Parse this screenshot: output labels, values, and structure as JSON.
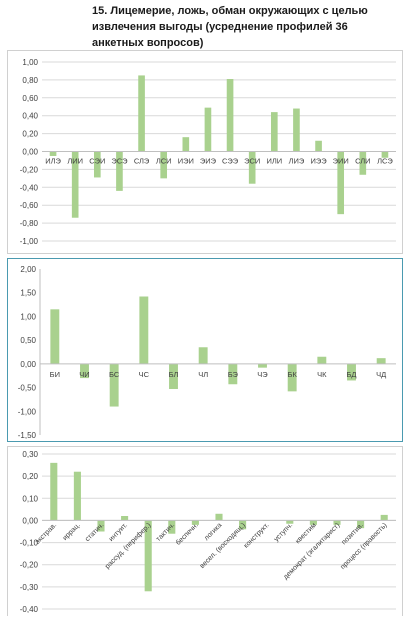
{
  "title": "15. Лицемерие, ложь, обман окружающих с целью извлечения выгоды  (усреднение профилей 36 анкетных вопросов)",
  "colors": {
    "bar": "#a9d18e",
    "grid": "#d9d9d9",
    "axis": "#bfbfbf",
    "text": "#404040"
  },
  "chart_data": [
    {
      "type": "bar",
      "ylim": [
        -1.0,
        1.0
      ],
      "ytick_step": 0.2,
      "grid": true,
      "categories": [
        "ИЛЭ",
        "ЛИИ",
        "СЭИ",
        "ЭСЭ",
        "СЛЭ",
        "ЛСИ",
        "ИЭИ",
        "ЭИЭ",
        "СЭЭ",
        "ЭСИ",
        "ИЛИ",
        "ЛИЭ",
        "ИЭЭ",
        "ЭИИ",
        "СЛИ",
        "ЛСЭ"
      ],
      "values": [
        -0.05,
        -0.74,
        -0.29,
        -0.44,
        0.85,
        -0.3,
        0.16,
        0.49,
        0.81,
        -0.36,
        0.44,
        0.48,
        0.12,
        -0.7,
        -0.26,
        -0.07
      ]
    },
    {
      "type": "bar",
      "ylim": [
        -1.5,
        2.0
      ],
      "ytick_step": 0.5,
      "grid": false,
      "categories": [
        "БИ",
        "ЧИ",
        "БС",
        "ЧС",
        "БЛ",
        "ЧЛ",
        "БЭ",
        "ЧЭ",
        "БК",
        "ЧК",
        "БД",
        "ЧД"
      ],
      "values": [
        1.15,
        -0.3,
        -0.9,
        1.42,
        -0.53,
        0.35,
        -0.43,
        -0.08,
        -0.58,
        0.15,
        -0.35,
        0.12
      ]
    },
    {
      "type": "bar",
      "ylim": [
        -0.4,
        0.3
      ],
      "ytick_step": 0.1,
      "grid": true,
      "categories": [
        "экстрав.",
        "иррац.",
        "статич.",
        "интуит.",
        "рассуд. (перифер.)",
        "тактич.",
        "беспечн.",
        "логика",
        "весел. (восходящ.)",
        "конструкт.",
        "уступч.",
        "квестим",
        "демократ (эгалитарист)",
        "позитив.",
        "процесс (правость)"
      ],
      "values": [
        0.26,
        0.22,
        -0.05,
        0.02,
        -0.32,
        -0.06,
        -0.02,
        0.03,
        -0.04,
        0.0,
        -0.015,
        -0.02,
        -0.02,
        -0.035,
        0.025
      ]
    }
  ]
}
